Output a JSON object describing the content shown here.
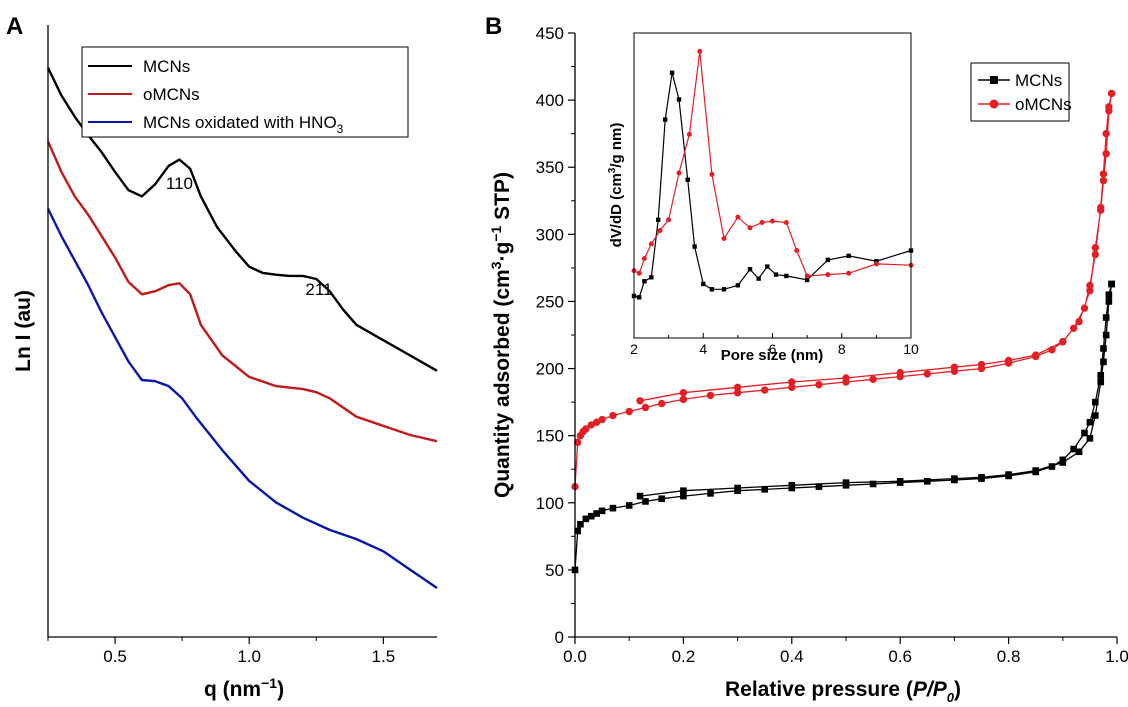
{
  "chart_data": [
    {
      "panel": "A",
      "type": "line",
      "xlabel": "q (nm⁻¹)",
      "ylabel": "Ln I (au)",
      "xlim": [
        0.25,
        1.7
      ],
      "xticks": [
        "0.5",
        "1.0",
        "1.5"
      ],
      "yticks": [],
      "legend_position": "top-right",
      "annotations": [
        {
          "text": "110",
          "x": 0.74
        },
        {
          "text": "211",
          "x": 1.26
        }
      ],
      "series": [
        {
          "name": "MCNs",
          "color": "#000000",
          "x": [
            0.25,
            0.3,
            0.35,
            0.4,
            0.45,
            0.5,
            0.55,
            0.6,
            0.65,
            0.7,
            0.74,
            0.78,
            0.82,
            0.88,
            0.95,
            1.0,
            1.05,
            1.1,
            1.15,
            1.2,
            1.25,
            1.3,
            1.35,
            1.4,
            1.5,
            1.6,
            1.7
          ],
          "y": [
            9.3,
            8.85,
            8.5,
            8.2,
            7.92,
            7.6,
            7.3,
            7.2,
            7.4,
            7.7,
            7.8,
            7.65,
            7.2,
            6.7,
            6.3,
            6.05,
            5.95,
            5.92,
            5.9,
            5.9,
            5.85,
            5.65,
            5.35,
            5.1,
            4.85,
            4.6,
            4.35
          ]
        },
        {
          "name": "oMCNs",
          "color": "#c0191c",
          "x": [
            0.25,
            0.3,
            0.35,
            0.4,
            0.45,
            0.5,
            0.55,
            0.6,
            0.65,
            0.7,
            0.74,
            0.78,
            0.82,
            0.9,
            1.0,
            1.1,
            1.2,
            1.25,
            1.3,
            1.4,
            1.5,
            1.6,
            1.7
          ],
          "y": [
            8.1,
            7.6,
            7.2,
            6.9,
            6.55,
            6.2,
            5.8,
            5.6,
            5.65,
            5.75,
            5.78,
            5.6,
            5.1,
            4.6,
            4.25,
            4.1,
            4.05,
            4.0,
            3.9,
            3.6,
            3.45,
            3.3,
            3.2
          ]
        },
        {
          "name": "MCNs oxidated with HNO₃",
          "color": "#0b16a8",
          "x": [
            0.25,
            0.3,
            0.35,
            0.4,
            0.45,
            0.5,
            0.55,
            0.6,
            0.65,
            0.7,
            0.75,
            0.8,
            0.9,
            1.0,
            1.1,
            1.2,
            1.3,
            1.4,
            1.5,
            1.6,
            1.7
          ],
          "y": [
            7.0,
            6.55,
            6.15,
            5.75,
            5.3,
            4.9,
            4.5,
            4.2,
            4.18,
            4.1,
            3.9,
            3.6,
            3.05,
            2.55,
            2.2,
            1.95,
            1.75,
            1.6,
            1.4,
            1.1,
            0.8
          ]
        }
      ]
    },
    {
      "panel": "B",
      "type": "line",
      "xlabel": "Relative pressure (P/P₀)",
      "ylabel": "Quantity adsorbed (cm³·g⁻¹ STP)",
      "xlim": [
        0.0,
        1.0
      ],
      "ylim": [
        0,
        450
      ],
      "xticks": [
        "0.0",
        "0.2",
        "0.4",
        "0.6",
        "0.8",
        "1.0"
      ],
      "yticks": [
        "0",
        "50",
        "100",
        "150",
        "200",
        "250",
        "300",
        "350",
        "400",
        "450"
      ],
      "legend_position": "top-right",
      "series": [
        {
          "name": "MCNs",
          "color": "#000000",
          "marker": "square",
          "x": [
            0.0,
            0.005,
            0.01,
            0.02,
            0.03,
            0.04,
            0.05,
            0.07,
            0.1,
            0.13,
            0.16,
            0.2,
            0.25,
            0.3,
            0.35,
            0.4,
            0.45,
            0.5,
            0.55,
            0.6,
            0.65,
            0.7,
            0.75,
            0.8,
            0.85,
            0.88,
            0.9,
            0.92,
            0.94,
            0.95,
            0.96,
            0.97,
            0.975,
            0.98,
            0.985,
            0.99,
            0.99,
            0.985,
            0.98,
            0.975,
            0.97,
            0.96,
            0.95,
            0.93,
            0.9,
            0.85,
            0.8,
            0.75,
            0.7,
            0.6,
            0.5,
            0.4,
            0.3,
            0.2,
            0.12
          ],
          "y": [
            50,
            79,
            84,
            88,
            90,
            92,
            94,
            96,
            98,
            101,
            103,
            105,
            107,
            109,
            110,
            111,
            112,
            113,
            114,
            115,
            116,
            117,
            118,
            120,
            123,
            127,
            132,
            140,
            152,
            160,
            175,
            195,
            215,
            238,
            255,
            263,
            263,
            250,
            225,
            205,
            190,
            165,
            148,
            138,
            130,
            124,
            121,
            119,
            118,
            116,
            115,
            113,
            111,
            109,
            105
          ]
        },
        {
          "name": "oMCNs",
          "color": "#e21f26",
          "marker": "circle",
          "x": [
            0.0,
            0.005,
            0.01,
            0.015,
            0.02,
            0.03,
            0.04,
            0.05,
            0.07,
            0.1,
            0.13,
            0.16,
            0.2,
            0.25,
            0.3,
            0.35,
            0.4,
            0.45,
            0.5,
            0.55,
            0.6,
            0.65,
            0.7,
            0.75,
            0.8,
            0.85,
            0.88,
            0.9,
            0.92,
            0.94,
            0.95,
            0.96,
            0.97,
            0.975,
            0.98,
            0.985,
            0.99,
            0.99,
            0.985,
            0.98,
            0.975,
            0.97,
            0.96,
            0.95,
            0.93,
            0.9,
            0.85,
            0.8,
            0.75,
            0.7,
            0.6,
            0.5,
            0.4,
            0.3,
            0.2,
            0.12
          ],
          "y": [
            112,
            145,
            150,
            153,
            155,
            158,
            160,
            162,
            165,
            168,
            171,
            174,
            177,
            180,
            182,
            184,
            186,
            188,
            190,
            192,
            194,
            196,
            198,
            200,
            204,
            209,
            214,
            220,
            230,
            245,
            262,
            285,
            320,
            345,
            375,
            395,
            405,
            405,
            392,
            360,
            340,
            318,
            290,
            258,
            235,
            220,
            210,
            206,
            203,
            201,
            197,
            193,
            190,
            186,
            182,
            176
          ]
        }
      ],
      "inset": {
        "type": "line",
        "xlabel": "Pore size (nm)",
        "ylabel": "dV/dD (cm³/g nm)",
        "xlim": [
          2,
          10
        ],
        "xticks": [
          "2",
          "4",
          "6",
          "8",
          "10"
        ],
        "series": [
          {
            "name": "MCNs",
            "color": "#000000",
            "marker": "square",
            "x": [
              2.0,
              2.15,
              2.3,
              2.5,
              2.7,
              2.9,
              3.1,
              3.3,
              3.55,
              3.75,
              4.0,
              4.25,
              4.6,
              5.0,
              5.35,
              5.6,
              5.85,
              6.1,
              6.4,
              7.0,
              7.6,
              8.2,
              9.0,
              10.0
            ],
            "y": [
              253,
              252,
              264,
              267,
              310,
              385,
              420,
              400,
              340,
              290,
              262,
              258,
              258,
              261,
              273,
              266,
              275,
              269,
              268,
              265,
              280,
              283,
              279,
              287
            ]
          },
          {
            "name": "oMCNs",
            "color": "#e21f26",
            "marker": "circle",
            "x": [
              2.0,
              2.15,
              2.3,
              2.5,
              2.75,
              3.0,
              3.3,
              3.6,
              3.9,
              4.25,
              4.6,
              5.0,
              5.35,
              5.7,
              6.0,
              6.4,
              6.7,
              7.0,
              7.6,
              8.2,
              9.0,
              10.0
            ],
            "y": [
              272,
              270,
              281,
              292,
              302,
              310,
              345,
              374,
              436,
              344,
              296,
              312,
              304,
              308,
              309,
              308,
              287,
              268,
              269,
              270,
              277,
              276
            ]
          }
        ]
      }
    }
  ],
  "panels": {
    "a": {
      "label": "A",
      "ylabel": "Ln I (au)",
      "xlabel": "q (nm",
      "xlabel_sup": "−1",
      "xlabel_end": ")"
    },
    "b": {
      "label": "B",
      "xlabel": "Relative pressure (",
      "xlabel_italic": "P/P",
      "xlabel_sub": "0",
      "xlabel_end": ")",
      "ylabel_part1": "Quantity adsorbed (cm",
      "ylabel_sup1": "3",
      "ylabel_part2": "·g",
      "ylabel_sup2": "−1",
      "ylabel_part3": " STP)"
    },
    "inset": {
      "xlabel": "Pore size (nm)",
      "ylabel_part1": "dV/dD (cm",
      "ylabel_sup": "3",
      "ylabel_part2": "/g nm)"
    },
    "legend_a": {
      "item1": "MCNs",
      "item2": "oMCNs",
      "item3": "MCNs oxidated with HNO",
      "item3_sub": "3"
    },
    "legend_b": {
      "item1": "MCNs",
      "item2": "oMCNs"
    },
    "annotations_a": {
      "peak1": "110",
      "peak2": "211"
    }
  }
}
